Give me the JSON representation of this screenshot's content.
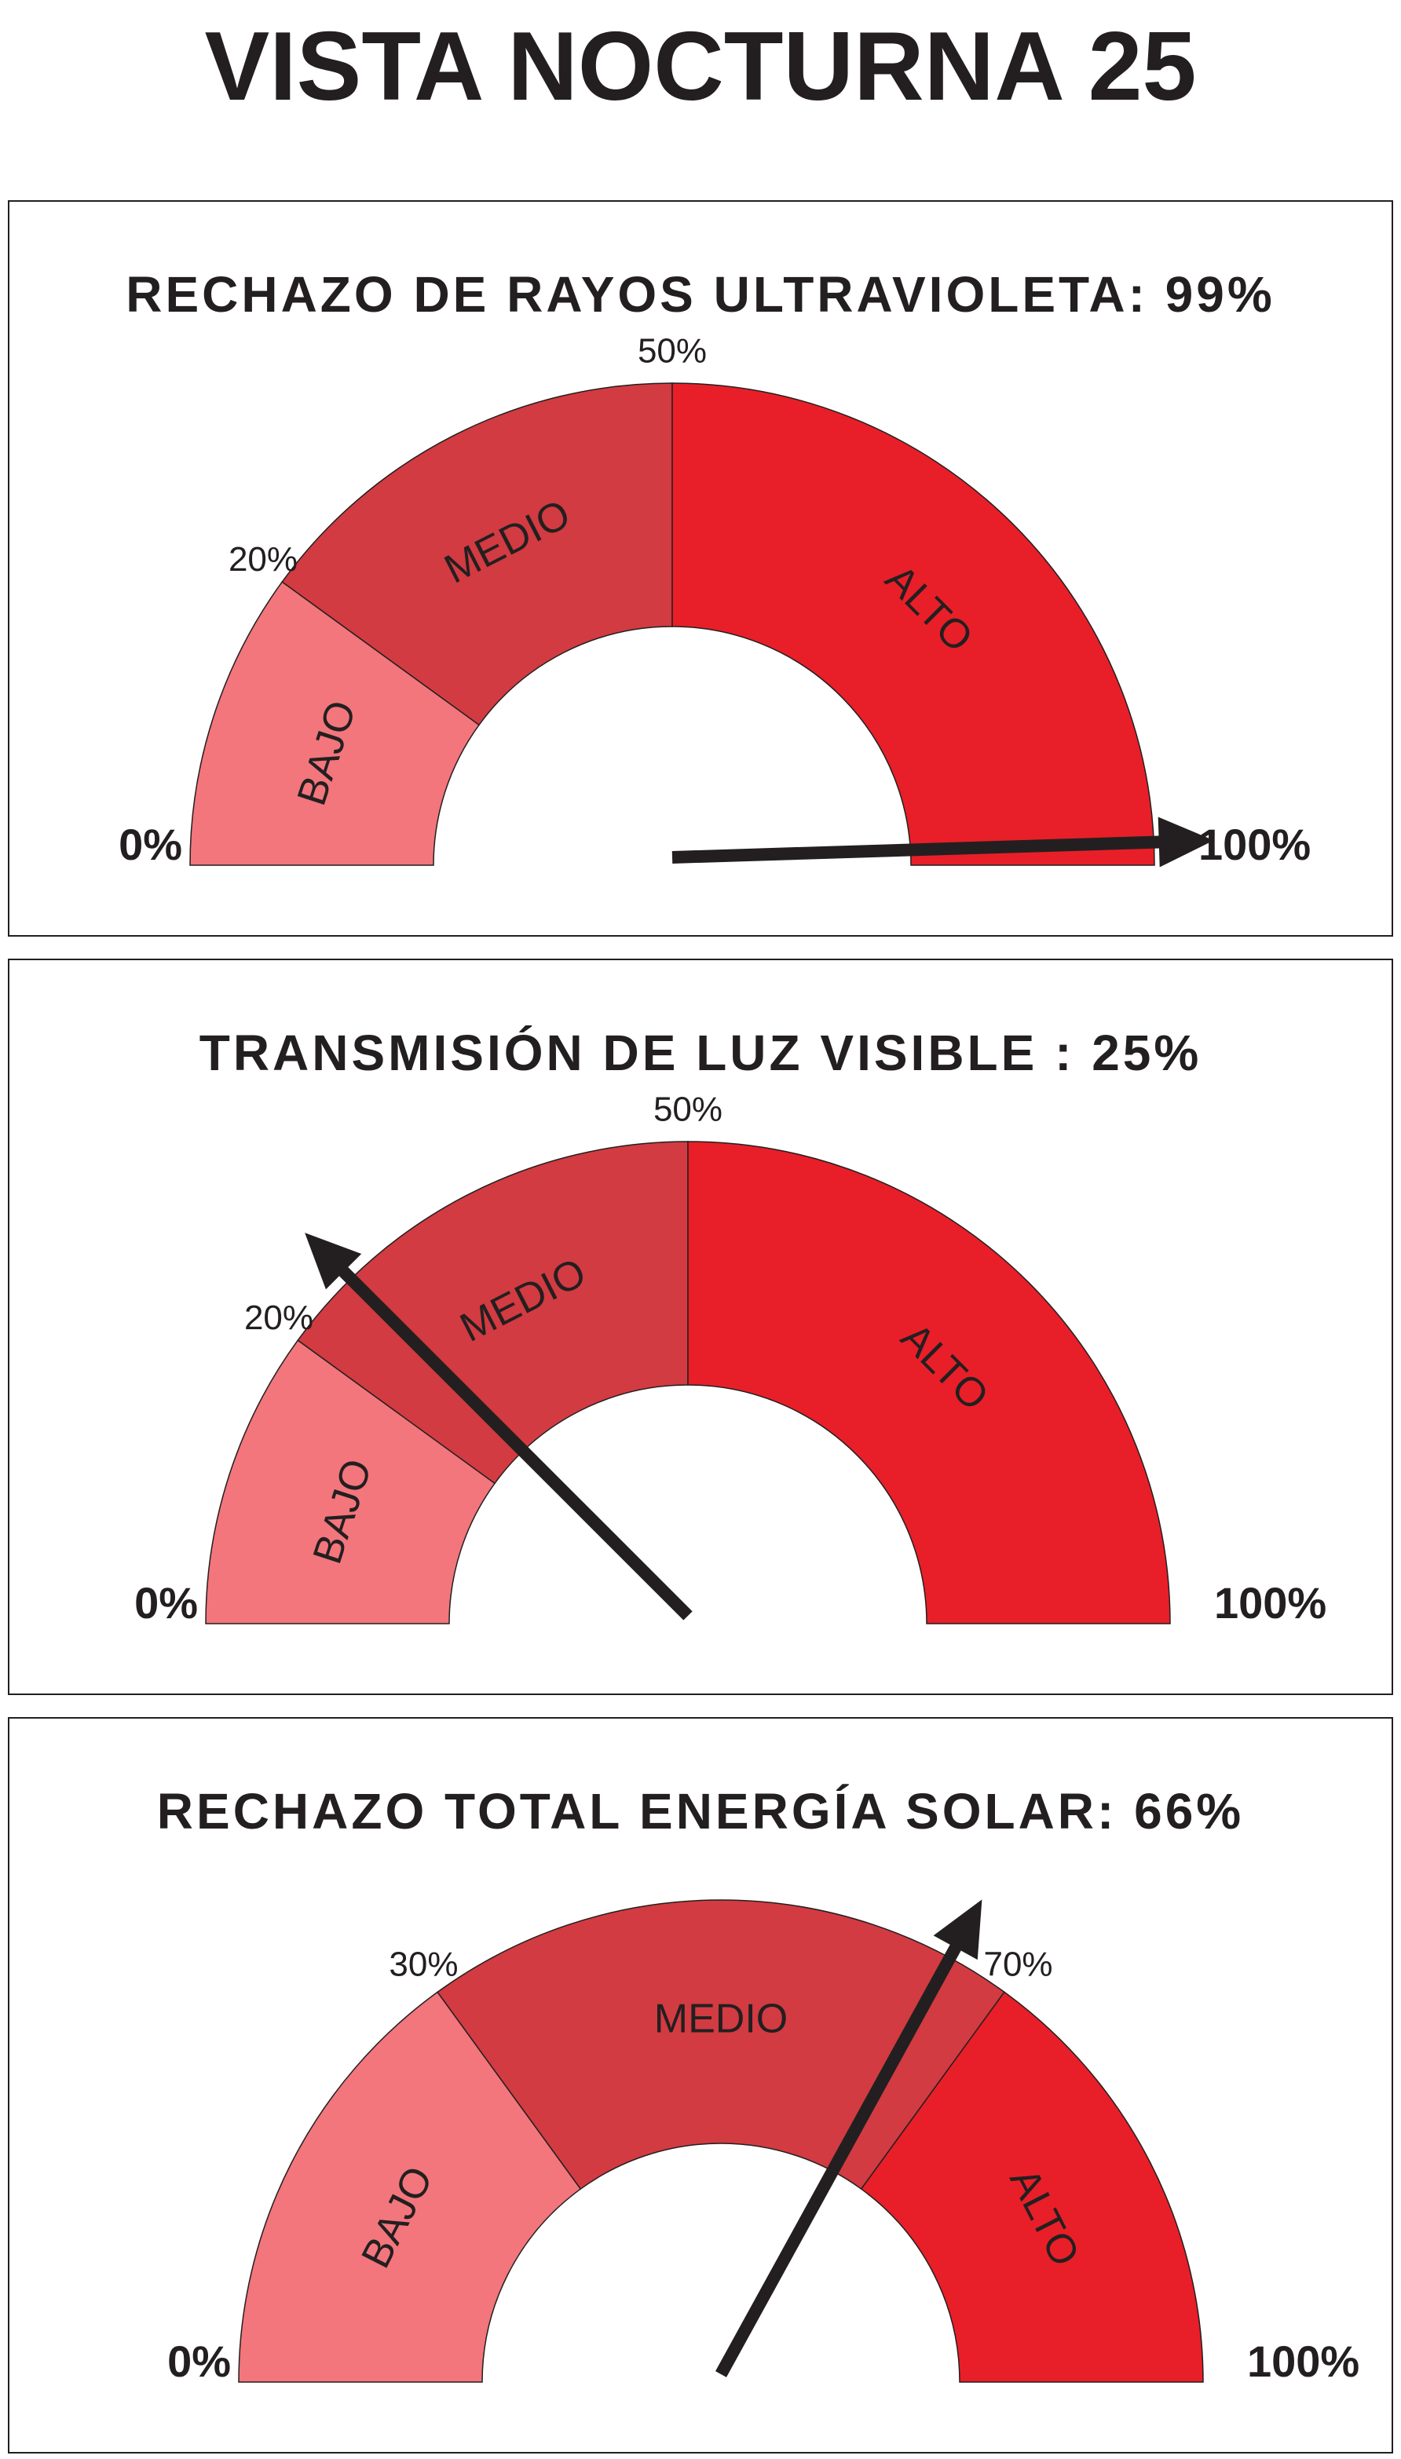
{
  "title": "VISTA NOCTURNA 25",
  "chart_data": [
    {
      "type": "gauge",
      "title": "RECHAZO DE RAYOS ULTRAVIOLETA: 99%",
      "value": 99,
      "needle_color": "#231f20",
      "ylim": [
        0,
        100
      ],
      "ticks": [
        {
          "value": 0,
          "label": "0%"
        },
        {
          "value": 20,
          "label": "20%"
        },
        {
          "value": 50,
          "label": "50%"
        },
        {
          "value": 100,
          "label": "100%"
        }
      ],
      "bands": [
        {
          "name": "BAJO",
          "color": "#f2767c"
        },
        {
          "name": "MEDIO",
          "color": "#d23b41"
        },
        {
          "name": "ALTO",
          "color": "#e81f28"
        }
      ]
    },
    {
      "type": "gauge",
      "title": "TRANSMISIÓN DE LUZ VISIBLE : 25%",
      "value": 25,
      "needle_color": "#231f20",
      "ylim": [
        0,
        100
      ],
      "ticks": [
        {
          "value": 0,
          "label": "0%"
        },
        {
          "value": 20,
          "label": "20%"
        },
        {
          "value": 50,
          "label": "50%"
        },
        {
          "value": 100,
          "label": "100%"
        }
      ],
      "bands": [
        {
          "name": "BAJO",
          "color": "#f2767c"
        },
        {
          "name": "MEDIO",
          "color": "#d23b41"
        },
        {
          "name": "ALTO",
          "color": "#e81f28"
        }
      ]
    },
    {
      "type": "gauge",
      "title": "RECHAZO TOTAL ENERGÍA SOLAR: 66%",
      "value": 66,
      "needle_color": "#231f20",
      "ylim": [
        0,
        100
      ],
      "ticks": [
        {
          "value": 0,
          "label": "0%"
        },
        {
          "value": 30,
          "label": "30%"
        },
        {
          "value": 70,
          "label": "70%"
        },
        {
          "value": 100,
          "label": "100%"
        }
      ],
      "bands": [
        {
          "name": "BAJO",
          "color": "#f2767c"
        },
        {
          "name": "MEDIO",
          "color": "#d23b41"
        },
        {
          "name": "ALTO",
          "color": "#e81f28"
        }
      ]
    }
  ]
}
